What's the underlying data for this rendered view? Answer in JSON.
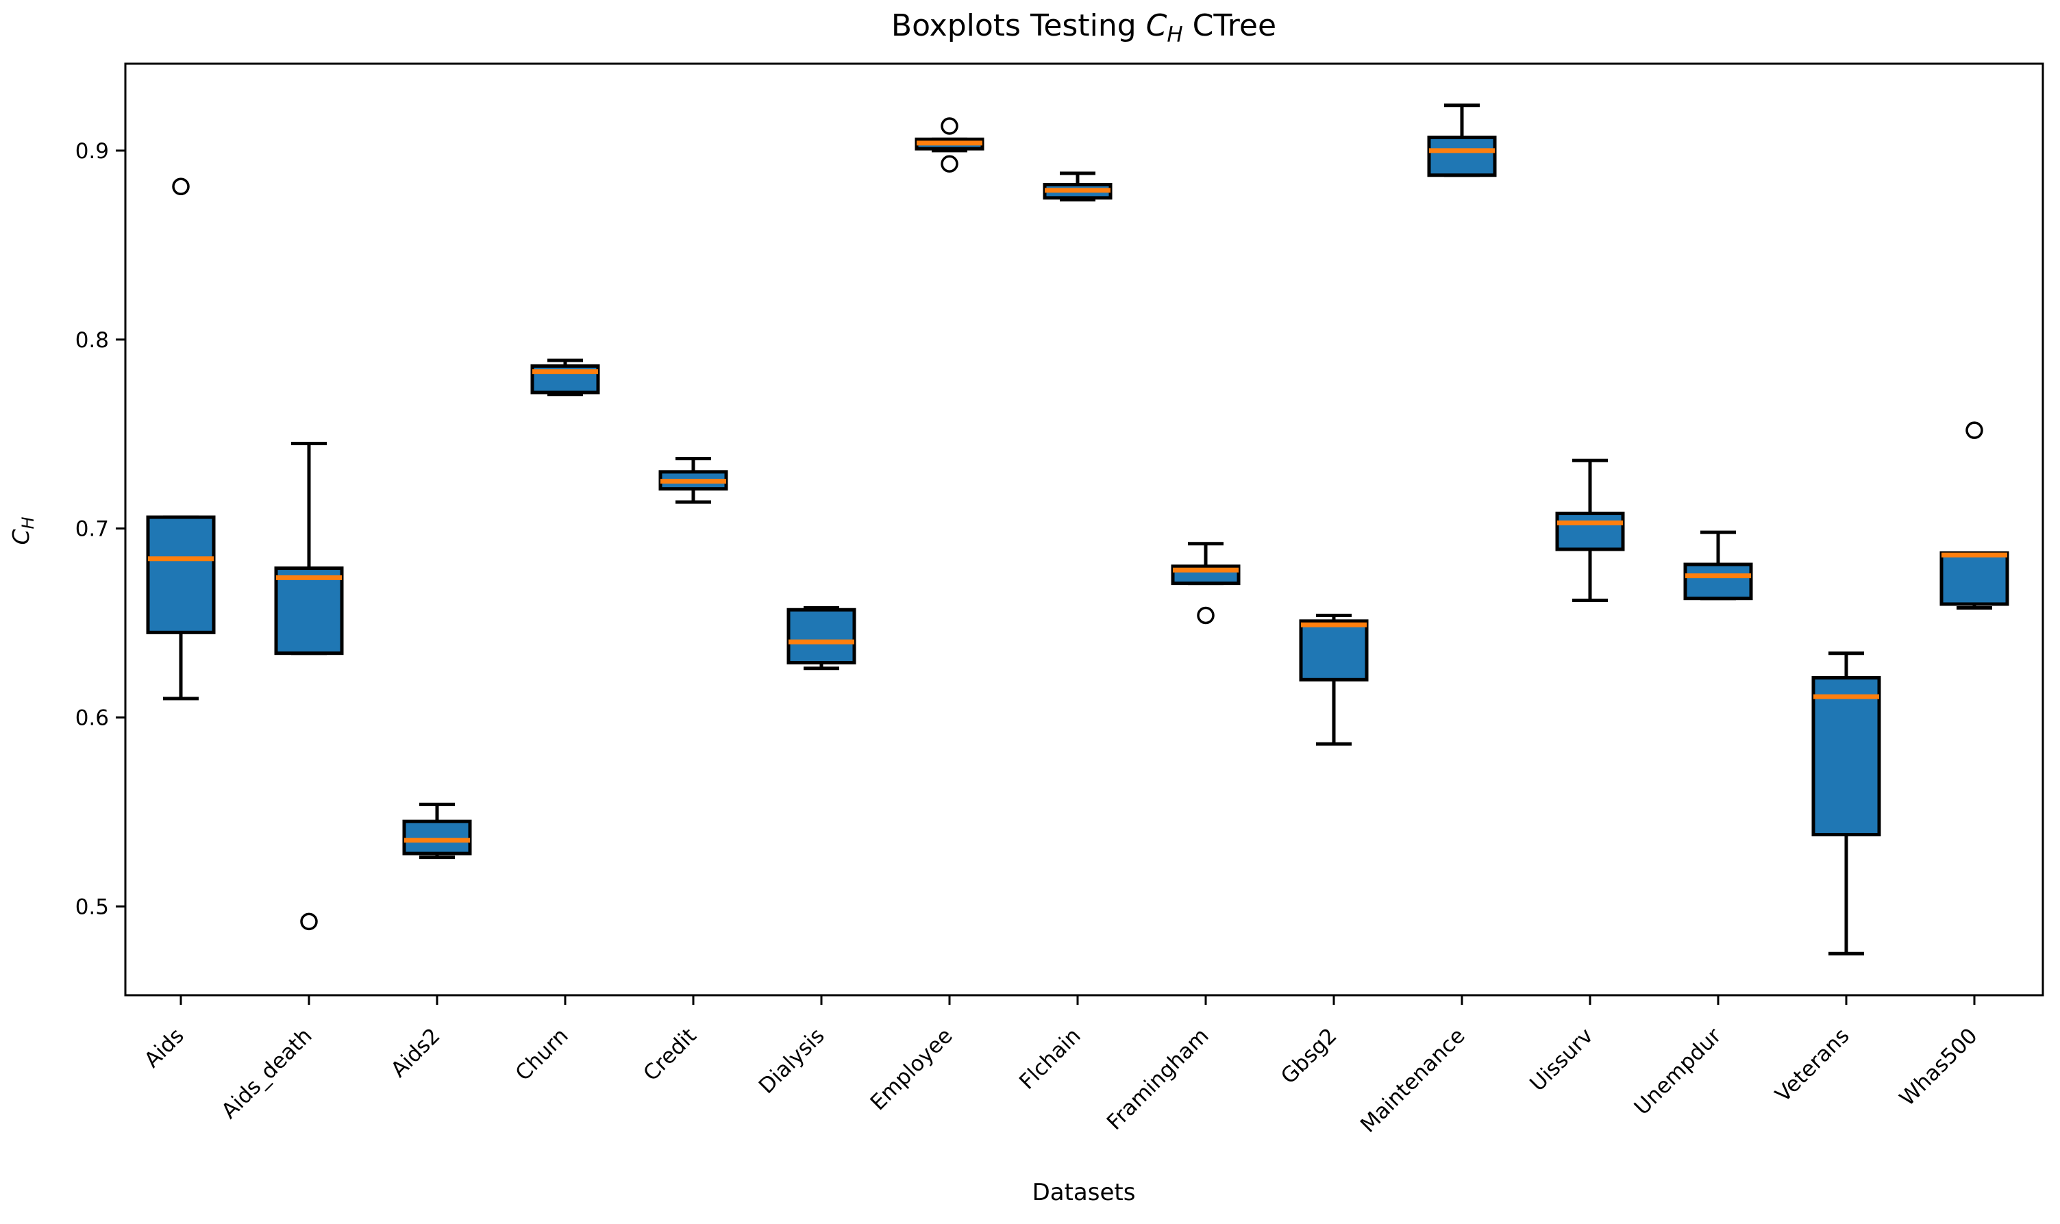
{
  "figure": {
    "background": "#ffffff"
  },
  "chart_data": {
    "type": "boxplot",
    "title": "Boxplots Testing C_H CTree",
    "title_parts": {
      "prefix": "Boxplots Testing ",
      "math_main": "C",
      "math_sub": "H",
      "suffix": " CTree"
    },
    "xlabel": "Datasets",
    "ylabel": "C_H",
    "ylabel_parts": {
      "main": "C",
      "sub": "H"
    },
    "ylim": [
      0.453,
      0.946
    ],
    "yticks": [
      0.5,
      0.6,
      0.7,
      0.8,
      0.9
    ],
    "grid": false,
    "legend": null,
    "categories": [
      "Aids",
      "Aids_death",
      "Aids2",
      "Churn",
      "Credit",
      "Dialysis",
      "Employee",
      "Flchain",
      "Framingham",
      "Gbsg2",
      "Maintenance",
      "Uissurv",
      "Unempdur",
      "Veterans",
      "Whas500"
    ],
    "boxes": [
      {
        "label": "Aids",
        "whislo": 0.61,
        "q1": 0.645,
        "med": 0.684,
        "q3": 0.706,
        "whishi": 0.706,
        "fliers": [
          0.881
        ]
      },
      {
        "label": "Aids_death",
        "whislo": 0.634,
        "q1": 0.634,
        "med": 0.674,
        "q3": 0.679,
        "whishi": 0.745,
        "fliers": [
          0.492
        ]
      },
      {
        "label": "Aids2",
        "whislo": 0.526,
        "q1": 0.528,
        "med": 0.535,
        "q3": 0.545,
        "whishi": 0.554,
        "fliers": []
      },
      {
        "label": "Churn",
        "whislo": 0.771,
        "q1": 0.772,
        "med": 0.783,
        "q3": 0.786,
        "whishi": 0.789,
        "fliers": []
      },
      {
        "label": "Credit",
        "whislo": 0.714,
        "q1": 0.721,
        "med": 0.725,
        "q3": 0.73,
        "whishi": 0.737,
        "fliers": []
      },
      {
        "label": "Dialysis",
        "whislo": 0.626,
        "q1": 0.629,
        "med": 0.64,
        "q3": 0.657,
        "whishi": 0.658,
        "fliers": []
      },
      {
        "label": "Employee",
        "whislo": 0.9,
        "q1": 0.901,
        "med": 0.904,
        "q3": 0.906,
        "whishi": 0.906,
        "fliers": [
          0.913,
          0.893
        ]
      },
      {
        "label": "Flchain",
        "whislo": 0.874,
        "q1": 0.875,
        "med": 0.879,
        "q3": 0.882,
        "whishi": 0.888,
        "fliers": []
      },
      {
        "label": "Framingham",
        "whislo": 0.671,
        "q1": 0.671,
        "med": 0.678,
        "q3": 0.68,
        "whishi": 0.692,
        "fliers": [
          0.654
        ]
      },
      {
        "label": "Gbsg2",
        "whislo": 0.586,
        "q1": 0.62,
        "med": 0.649,
        "q3": 0.651,
        "whishi": 0.654,
        "fliers": []
      },
      {
        "label": "Maintenance",
        "whislo": 0.887,
        "q1": 0.887,
        "med": 0.9,
        "q3": 0.907,
        "whishi": 0.924,
        "fliers": []
      },
      {
        "label": "Uissurv",
        "whislo": 0.662,
        "q1": 0.689,
        "med": 0.703,
        "q3": 0.708,
        "whishi": 0.736,
        "fliers": []
      },
      {
        "label": "Unempdur",
        "whislo": 0.663,
        "q1": 0.663,
        "med": 0.675,
        "q3": 0.681,
        "whishi": 0.698,
        "fliers": []
      },
      {
        "label": "Veterans",
        "whislo": 0.475,
        "q1": 0.538,
        "med": 0.611,
        "q3": 0.621,
        "whishi": 0.634,
        "fliers": []
      },
      {
        "label": "Whas500",
        "whislo": 0.658,
        "q1": 0.66,
        "med": 0.686,
        "q3": 0.687,
        "whishi": 0.687,
        "fliers": [
          0.752
        ]
      }
    ],
    "colors": {
      "box_fill": "#1f77b4",
      "median": "#ff7f0e",
      "line": "#000000",
      "background": "#ffffff"
    }
  }
}
